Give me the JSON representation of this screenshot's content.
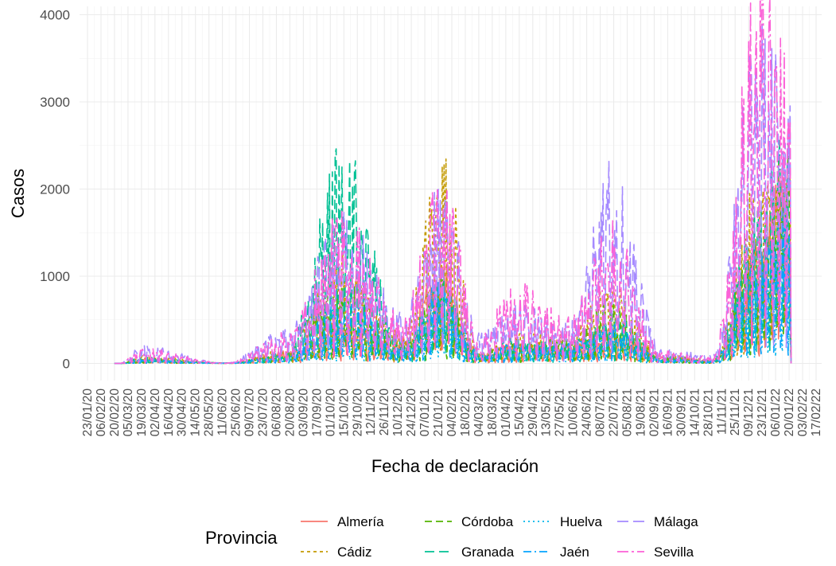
{
  "chart_data": {
    "type": "line",
    "title": "",
    "xlabel": "Fecha de declaración",
    "ylabel": "Casos",
    "ylim": [
      0,
      4000
    ],
    "y_ticks": [
      0,
      1000,
      2000,
      3000,
      4000
    ],
    "x_ticks": [
      "23/01/20",
      "06/02/20",
      "20/02/20",
      "05/03/20",
      "19/03/20",
      "02/04/20",
      "16/04/20",
      "30/04/20",
      "14/05/20",
      "28/05/20",
      "11/06/20",
      "25/06/20",
      "09/07/20",
      "23/07/20",
      "06/08/20",
      "20/08/20",
      "03/09/20",
      "17/09/20",
      "01/10/20",
      "15/10/20",
      "29/10/20",
      "12/11/20",
      "26/11/20",
      "10/12/20",
      "24/12/20",
      "07/01/21",
      "21/01/21",
      "04/02/21",
      "18/02/21",
      "04/03/21",
      "18/03/21",
      "01/04/21",
      "15/04/21",
      "29/04/21",
      "13/05/21",
      "27/05/21",
      "10/06/21",
      "24/06/21",
      "08/07/21",
      "22/07/21",
      "05/08/21",
      "19/08/21",
      "02/09/21",
      "16/09/21",
      "30/09/21",
      "14/10/21",
      "28/10/21",
      "11/11/21",
      "25/11/21",
      "09/12/21",
      "23/12/21",
      "06/01/22",
      "20/01/22",
      "03/02/22",
      "17/02/22"
    ],
    "xlim": [
      "2020-01-23",
      "2022-02-17"
    ],
    "grid": true,
    "legend": {
      "title": "Provincia",
      "position": "bottom"
    },
    "peak_dates": [
      "2020-02-25",
      "2020-03-20",
      "2020-06-15",
      "2020-08-15",
      "2020-10-15",
      "2020-12-15",
      "2021-01-25",
      "2021-03-05",
      "2021-04-10",
      "2021-06-05",
      "2021-07-20",
      "2021-09-10",
      "2021-11-01",
      "2021-12-20",
      "2022-01-14"
    ],
    "series": [
      {
        "name": "Almería",
        "color": "#F8766D",
        "dash": "none",
        "peaks": [
          0,
          40,
          5,
          120,
          400,
          250,
          1000,
          100,
          200,
          200,
          350,
          80,
          30,
          1200,
          1900
        ]
      },
      {
        "name": "Cádiz",
        "color": "#C49A00",
        "dash": "4 4",
        "peaks": [
          0,
          80,
          5,
          150,
          1100,
          300,
          2100,
          120,
          300,
          300,
          800,
          100,
          40,
          1800,
          2000
        ]
      },
      {
        "name": "Córdoba",
        "color": "#53B400",
        "dash": "9 5",
        "peaks": [
          0,
          50,
          5,
          100,
          800,
          200,
          900,
          100,
          200,
          250,
          600,
          60,
          30,
          1400,
          2100
        ]
      },
      {
        "name": "Granada",
        "color": "#00C094",
        "dash": "12 6",
        "peaks": [
          0,
          60,
          5,
          100,
          2150,
          200,
          850,
          100,
          250,
          200,
          500,
          70,
          30,
          1600,
          2300
        ]
      },
      {
        "name": "Huelva",
        "color": "#00B6EB",
        "dash": "2 4",
        "peaks": [
          0,
          30,
          3,
          60,
          400,
          150,
          600,
          80,
          150,
          150,
          300,
          40,
          20,
          900,
          1200
        ]
      },
      {
        "name": "Jaén",
        "color": "#06A4FF",
        "dash": "10 4 2 4",
        "peaks": [
          0,
          40,
          3,
          80,
          700,
          150,
          850,
          80,
          200,
          200,
          400,
          50,
          25,
          1100,
          1500
        ]
      },
      {
        "name": "Málaga",
        "color": "#A58AFF",
        "dash": "14 6",
        "peaks": [
          0,
          170,
          5,
          350,
          1500,
          500,
          1750,
          300,
          600,
          400,
          1950,
          150,
          80,
          3400,
          2900
        ]
      },
      {
        "name": "Sevilla",
        "color": "#FB61D7",
        "dash": "14 4 3 4",
        "peaks": [
          0,
          150,
          5,
          300,
          1500,
          500,
          1900,
          280,
          800,
          450,
          1400,
          120,
          70,
          3850,
          3100
        ]
      }
    ]
  }
}
